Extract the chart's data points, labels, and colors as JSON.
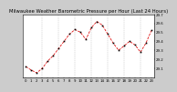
{
  "title": "Milwaukee Weather Barometric Pressure per Hour (Last 24 Hours)",
  "hours": [
    0,
    1,
    2,
    3,
    4,
    5,
    6,
    7,
    8,
    9,
    10,
    11,
    12,
    13,
    14,
    15,
    16,
    17,
    18,
    19,
    20,
    21,
    22,
    23
  ],
  "pressure": [
    29.12,
    29.08,
    29.05,
    29.1,
    29.18,
    29.24,
    29.32,
    29.4,
    29.48,
    29.53,
    29.5,
    29.42,
    29.55,
    29.62,
    29.58,
    29.48,
    29.38,
    29.3,
    29.35,
    29.4,
    29.36,
    29.28,
    29.38,
    29.52
  ],
  "ylim": [
    29.0,
    29.7
  ],
  "ytick_vals": [
    29.1,
    29.2,
    29.3,
    29.4,
    29.5,
    29.6,
    29.7
  ],
  "ytick_labels": [
    "29.1",
    "29.2",
    "29.3",
    "29.4",
    "29.5",
    "29.6",
    "29.7"
  ],
  "xtick_vals": [
    0,
    1,
    2,
    3,
    4,
    5,
    6,
    7,
    8,
    9,
    10,
    11,
    12,
    13,
    14,
    15,
    16,
    17,
    18,
    19,
    20,
    21,
    22,
    23
  ],
  "vgrid_positions": [
    3,
    6,
    9,
    12,
    15,
    18,
    21
  ],
  "line_color": "#dd0000",
  "marker_color": "#000000",
  "grid_color": "#bbbbbb",
  "bg_color": "#ffffff",
  "outer_bg": "#cccccc",
  "title_fontsize": 3.8,
  "tick_fontsize": 2.8,
  "line_style": "--",
  "line_width": 0.55,
  "marker_size": 1.2,
  "marker_style": "s"
}
